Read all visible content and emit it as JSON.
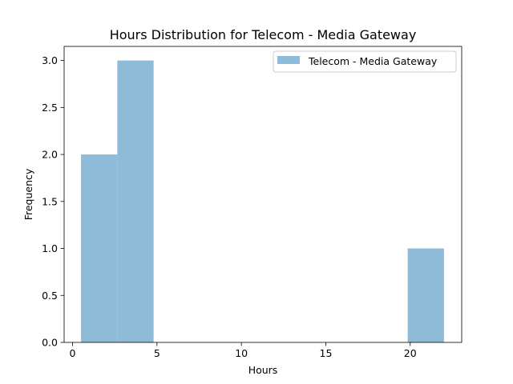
{
  "chart_data": {
    "type": "bar",
    "title": "Hours Distribution for Telecom - Media Gateway",
    "xlabel": "Hours",
    "ylabel": "Frequency",
    "xlim": [
      -0.5,
      23.05
    ],
    "ylim": [
      0,
      3.15
    ],
    "xticks": [
      0,
      5,
      10,
      15,
      20
    ],
    "xtick_labels": [
      "0",
      "5",
      "10",
      "15",
      "20"
    ],
    "yticks": [
      0.0,
      0.5,
      1.0,
      1.5,
      2.0,
      2.5,
      3.0
    ],
    "ytick_labels": [
      "0.0",
      "0.5",
      "1.0",
      "1.5",
      "2.0",
      "2.5",
      "3.0"
    ],
    "grid": false,
    "legend_position": "top-right",
    "series": [
      {
        "name": "Telecom - Media Gateway",
        "color": "#8fbbd9",
        "bins": [
          {
            "x0": 0.5,
            "x1": 2.65,
            "count": 2
          },
          {
            "x0": 2.65,
            "x1": 4.8,
            "count": 3
          },
          {
            "x0": 4.8,
            "x1": 6.95,
            "count": 0
          },
          {
            "x0": 6.95,
            "x1": 9.1,
            "count": 0
          },
          {
            "x0": 9.1,
            "x1": 11.25,
            "count": 0
          },
          {
            "x0": 11.25,
            "x1": 13.4,
            "count": 0
          },
          {
            "x0": 13.4,
            "x1": 15.55,
            "count": 0
          },
          {
            "x0": 15.55,
            "x1": 17.7,
            "count": 0
          },
          {
            "x0": 17.7,
            "x1": 19.85,
            "count": 0
          },
          {
            "x0": 19.85,
            "x1": 22.0,
            "count": 1
          }
        ]
      }
    ]
  }
}
